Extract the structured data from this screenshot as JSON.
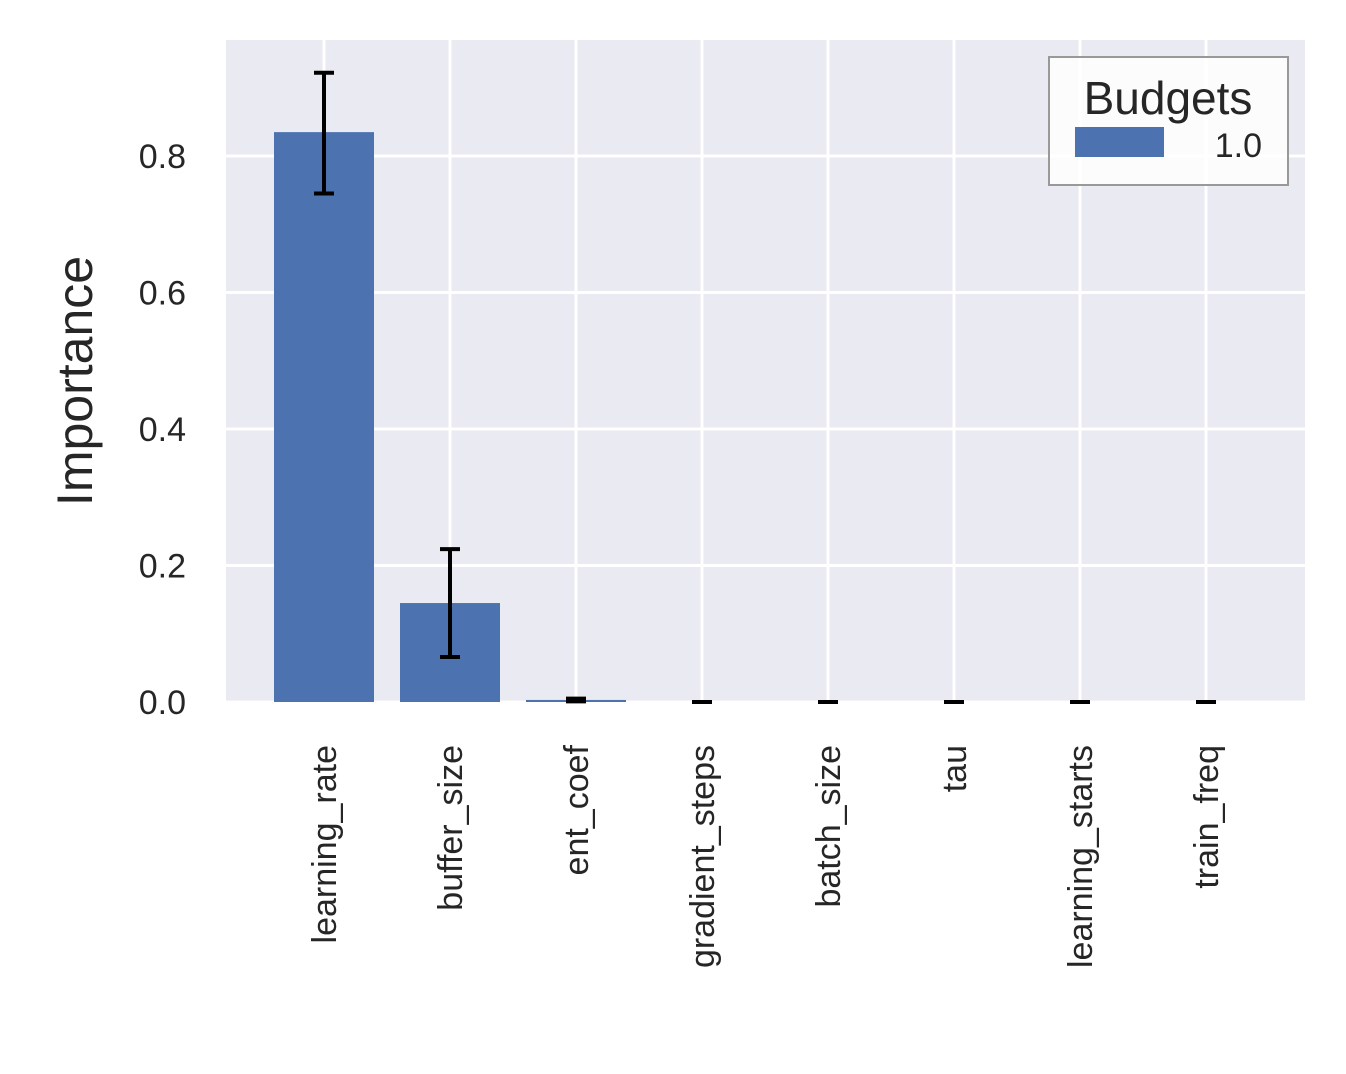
{
  "chart_data": {
    "type": "bar",
    "categories": [
      "learning_rate",
      "buffer_size",
      "ent_coef",
      "gradient_steps",
      "batch_size",
      "tau",
      "learning_starts",
      "train_freq"
    ],
    "series": [
      {
        "name": "1.0",
        "values": [
          0.835,
          0.145,
          0.003,
          0.0,
          0.0,
          0.0,
          0.0,
          0.0
        ],
        "error_low": [
          0.745,
          0.066,
          0.001,
          0.0,
          0.0,
          0.0,
          0.0,
          0.0
        ],
        "error_high": [
          0.922,
          0.224,
          0.005,
          0.0,
          0.0,
          0.0,
          0.0,
          0.0
        ]
      }
    ],
    "ylabel": "Importance",
    "xlabel": "",
    "ylim": [
      0.0,
      0.97
    ],
    "yticks": [
      "0.0",
      "0.2",
      "0.4",
      "0.6",
      "0.8"
    ],
    "grid": true,
    "legend": {
      "title": "Budgets",
      "position": "top-right"
    },
    "colors": {
      "bar": "#4c72b0",
      "plot_bg": "#eaeaf2",
      "grid": "#ffffff",
      "error": "#000000"
    }
  }
}
